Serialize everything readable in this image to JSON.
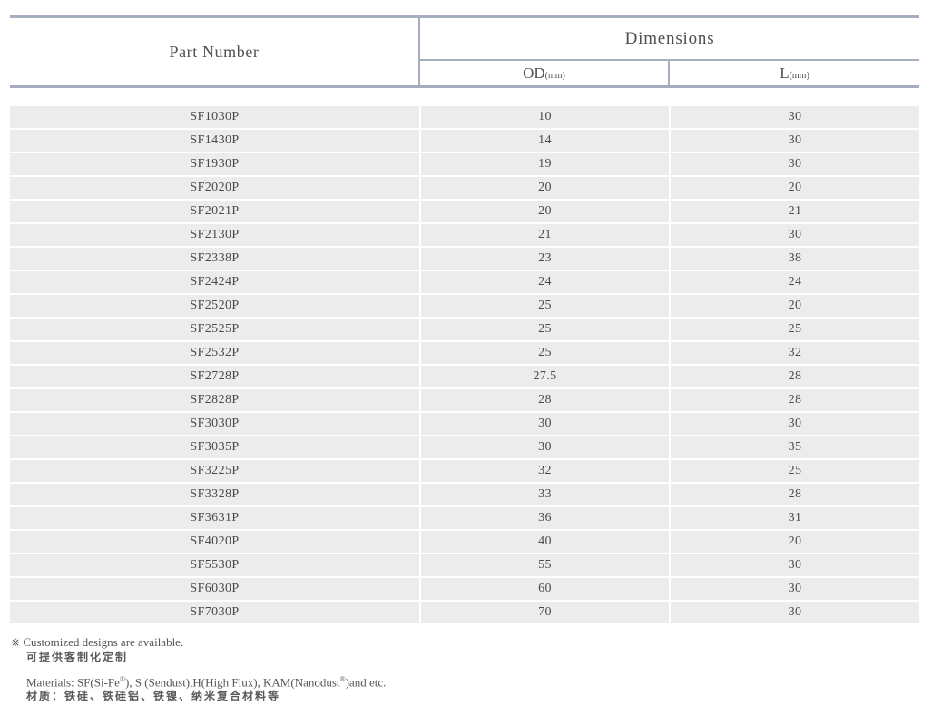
{
  "colors": {
    "line_color": "#a4aebc",
    "row_bg": "#ececec",
    "text_color": "#4f4f4f"
  },
  "table": {
    "header": {
      "part_number_label": "Part Number",
      "dimensions_label": "Dimensions",
      "od_label": "OD",
      "od_unit": "(mm)",
      "l_label": "L",
      "l_unit": "(mm)"
    },
    "rows": [
      {
        "part": "SF1030P",
        "od": "10",
        "l": "30"
      },
      {
        "part": "SF1430P",
        "od": "14",
        "l": "30"
      },
      {
        "part": "SF1930P",
        "od": "19",
        "l": "30"
      },
      {
        "part": "SF2020P",
        "od": "20",
        "l": "20"
      },
      {
        "part": "SF2021P",
        "od": "20",
        "l": "21"
      },
      {
        "part": "SF2130P",
        "od": "21",
        "l": "30"
      },
      {
        "part": "SF2338P",
        "od": "23",
        "l": "38"
      },
      {
        "part": "SF2424P",
        "od": "24",
        "l": "24"
      },
      {
        "part": "SF2520P",
        "od": "25",
        "l": "20"
      },
      {
        "part": "SF2525P",
        "od": "25",
        "l": "25"
      },
      {
        "part": "SF2532P",
        "od": "25",
        "l": "32"
      },
      {
        "part": "SF2728P",
        "od": "27.5",
        "l": "28"
      },
      {
        "part": "SF2828P",
        "od": "28",
        "l": "28"
      },
      {
        "part": "SF3030P",
        "od": "30",
        "l": "30"
      },
      {
        "part": "SF3035P",
        "od": "30",
        "l": "35"
      },
      {
        "part": "SF3225P",
        "od": "32",
        "l": "25"
      },
      {
        "part": "SF3328P",
        "od": "33",
        "l": "28"
      },
      {
        "part": "SF3631P",
        "od": "36",
        "l": "31"
      },
      {
        "part": "SF4020P",
        "od": "40",
        "l": "20"
      },
      {
        "part": "SF5530P",
        "od": "55",
        "l": "30"
      },
      {
        "part": "SF6030P",
        "od": "60",
        "l": "30"
      },
      {
        "part": "SF7030P",
        "od": "70",
        "l": "30"
      }
    ]
  },
  "notes": {
    "ref_symbol": "※",
    "customized_en": "Customized designs are available.",
    "customized_zh": "可提供客制化定制",
    "materials_en_1": "Materials: SF(Si-Fe",
    "reg_mark_1": "®",
    "materials_en_2": "), S (Sendust),H(High Flux), KAM(Nanodust",
    "reg_mark_2": "®",
    "materials_en_3": ")and etc.",
    "materials_zh": "材质：铁硅、铁硅铝、铁镍、纳米复合材料等"
  }
}
